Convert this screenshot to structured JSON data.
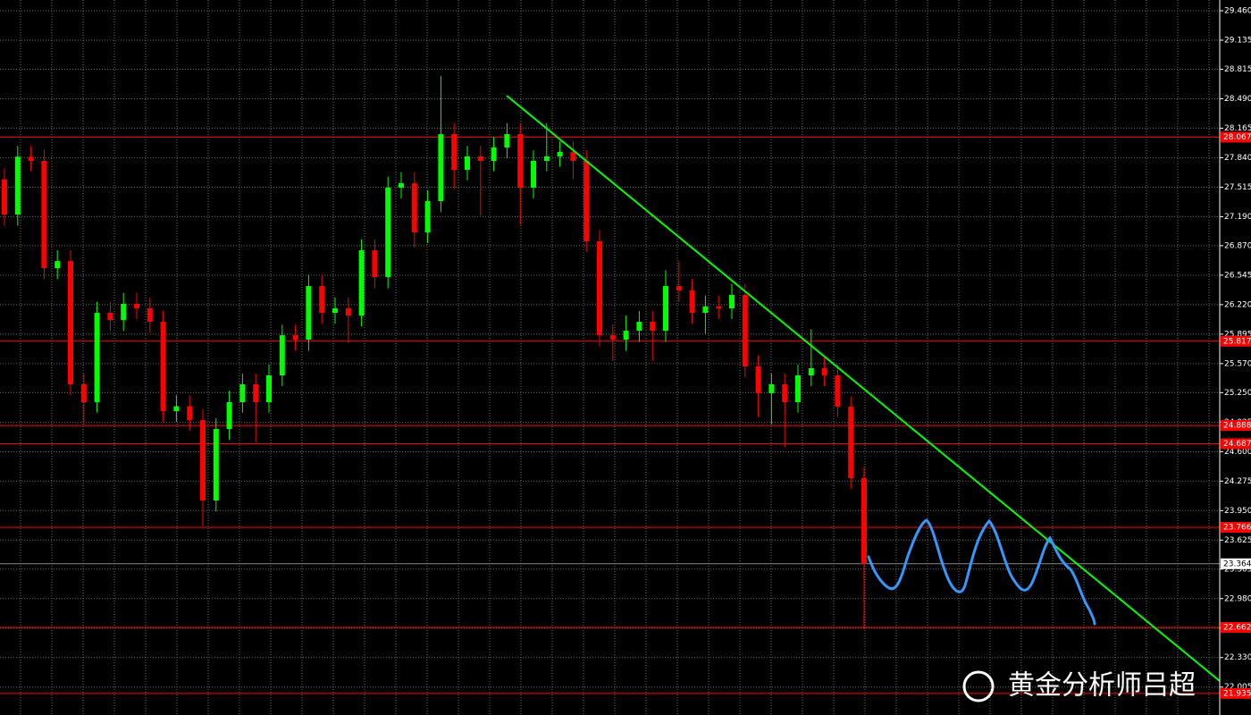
{
  "chart_data": {
    "type": "candlestick",
    "up_color": "#00ff00",
    "down_color": "#ff0000",
    "ylim": [
      21.697,
      29.578
    ],
    "yticks": [
      {
        "value": 29.46,
        "label": "29.460"
      },
      {
        "value": 29.135,
        "label": "29.135"
      },
      {
        "value": 28.815,
        "label": "28.815"
      },
      {
        "value": 28.49,
        "label": "28.490"
      },
      {
        "value": 28.165,
        "label": "28.165"
      },
      {
        "value": 27.84,
        "label": "27.840"
      },
      {
        "value": 27.515,
        "label": "27.515"
      },
      {
        "value": 27.19,
        "label": "27.190"
      },
      {
        "value": 26.87,
        "label": "26.870"
      },
      {
        "value": 26.545,
        "label": "26.545"
      },
      {
        "value": 26.22,
        "label": "26.220"
      },
      {
        "value": 25.895,
        "label": "25.895"
      },
      {
        "value": 25.57,
        "label": "25.570"
      },
      {
        "value": 25.25,
        "label": "25.250"
      },
      24.925,
      {
        "value": 24.6,
        "label": "24.600"
      },
      24.275,
      {
        "value": 23.95,
        "label": "23.950"
      },
      23.625,
      23.305,
      {
        "value": 22.98,
        "label": "22.980"
      },
      22.655,
      {
        "value": 22.33,
        "label": "22.330"
      },
      22.005
    ],
    "grid": true,
    "levels": [
      28.067,
      25.817,
      24.888,
      24.687,
      23.766,
      22.662,
      21.935
    ],
    "level_color": "#ff0000",
    "current_price": 23.364,
    "open": [
      27.6,
      27.213,
      27.851,
      27.805,
      26.622,
      26.7,
      25.342,
      25.145,
      26.13,
      26.05,
      26.228,
      26.179,
      26.031,
      25.046,
      25.1,
      24.947,
      24.061,
      24.849,
      25.145,
      25.342,
      25.145,
      25.44,
      25.883,
      25.834,
      26.425,
      26.13,
      26.179,
      26.1,
      26.819,
      26.524,
      27.509,
      27.558,
      27.016,
      27.361,
      28.1,
      27.706,
      27.854,
      27.805,
      27.952,
      28.1,
      27.509,
      27.805,
      27.854,
      27.903,
      27.805,
      26.918,
      25.883,
      25.834,
      25.933,
      26.031,
      25.933,
      26.425,
      26.376,
      26.13,
      26.2,
      26.179,
      26.327,
      25.539,
      25.243,
      25.342,
      25.145,
      25.44,
      25.52,
      25.44,
      25.095,
      24.307
    ],
    "high": [
      27.72,
      27.97,
      27.97,
      27.93,
      26.82,
      26.82,
      25.46,
      26.25,
      26.25,
      26.35,
      26.35,
      26.3,
      26.15,
      25.22,
      25.22,
      25.07,
      24.97,
      25.27,
      25.46,
      25.46,
      25.56,
      26.0,
      26.0,
      26.55,
      26.55,
      26.3,
      26.3,
      26.94,
      26.94,
      27.63,
      27.68,
      27.68,
      27.48,
      28.74,
      28.22,
      27.97,
      27.97,
      28.07,
      28.22,
      28.22,
      27.92,
      28.22,
      28.02,
      28.02,
      27.92,
      27.04,
      26.0,
      26.1,
      26.15,
      26.15,
      26.6,
      26.7,
      26.5,
      26.32,
      26.32,
      26.45,
      26.45,
      25.66,
      25.46,
      25.46,
      25.56,
      25.95,
      25.64,
      25.56,
      25.21,
      24.43
    ],
    "low": [
      27.09,
      27.09,
      27.69,
      26.5,
      26.5,
      25.22,
      24.9,
      25.03,
      25.93,
      25.93,
      26.06,
      25.91,
      24.93,
      24.93,
      24.83,
      23.78,
      23.94,
      24.73,
      25.03,
      24.7,
      25.03,
      25.32,
      25.71,
      25.71,
      26.01,
      26.01,
      25.8,
      25.98,
      26.4,
      26.4,
      27.39,
      26.85,
      26.9,
      27.24,
      27.5,
      27.59,
      27.2,
      27.69,
      27.83,
      27.1,
      27.39,
      27.69,
      27.74,
      27.6,
      26.8,
      25.76,
      25.6,
      25.71,
      25.81,
      25.6,
      25.81,
      26.25,
      26.01,
      25.9,
      26.06,
      26.06,
      25.42,
      24.98,
      24.9,
      24.65,
      25.03,
      25.32,
      25.32,
      24.98,
      24.19,
      22.64
    ],
    "close": [
      27.213,
      27.851,
      27.805,
      26.622,
      26.7,
      25.342,
      25.145,
      26.13,
      26.05,
      26.228,
      26.179,
      26.031,
      25.046,
      25.1,
      24.947,
      24.061,
      24.849,
      25.145,
      25.342,
      25.145,
      25.44,
      25.883,
      25.834,
      26.425,
      26.13,
      26.179,
      26.1,
      26.819,
      26.524,
      27.509,
      27.558,
      27.016,
      27.361,
      28.1,
      27.706,
      27.854,
      27.805,
      27.952,
      28.1,
      27.509,
      27.805,
      27.854,
      27.903,
      27.805,
      26.918,
      25.883,
      25.834,
      25.933,
      26.031,
      25.933,
      26.425,
      26.376,
      26.13,
      26.2,
      26.179,
      26.327,
      25.539,
      25.243,
      25.342,
      25.145,
      25.44,
      25.52,
      25.44,
      25.095,
      24.307,
      23.364
    ]
  },
  "watermark": "黄金分析师吕超"
}
